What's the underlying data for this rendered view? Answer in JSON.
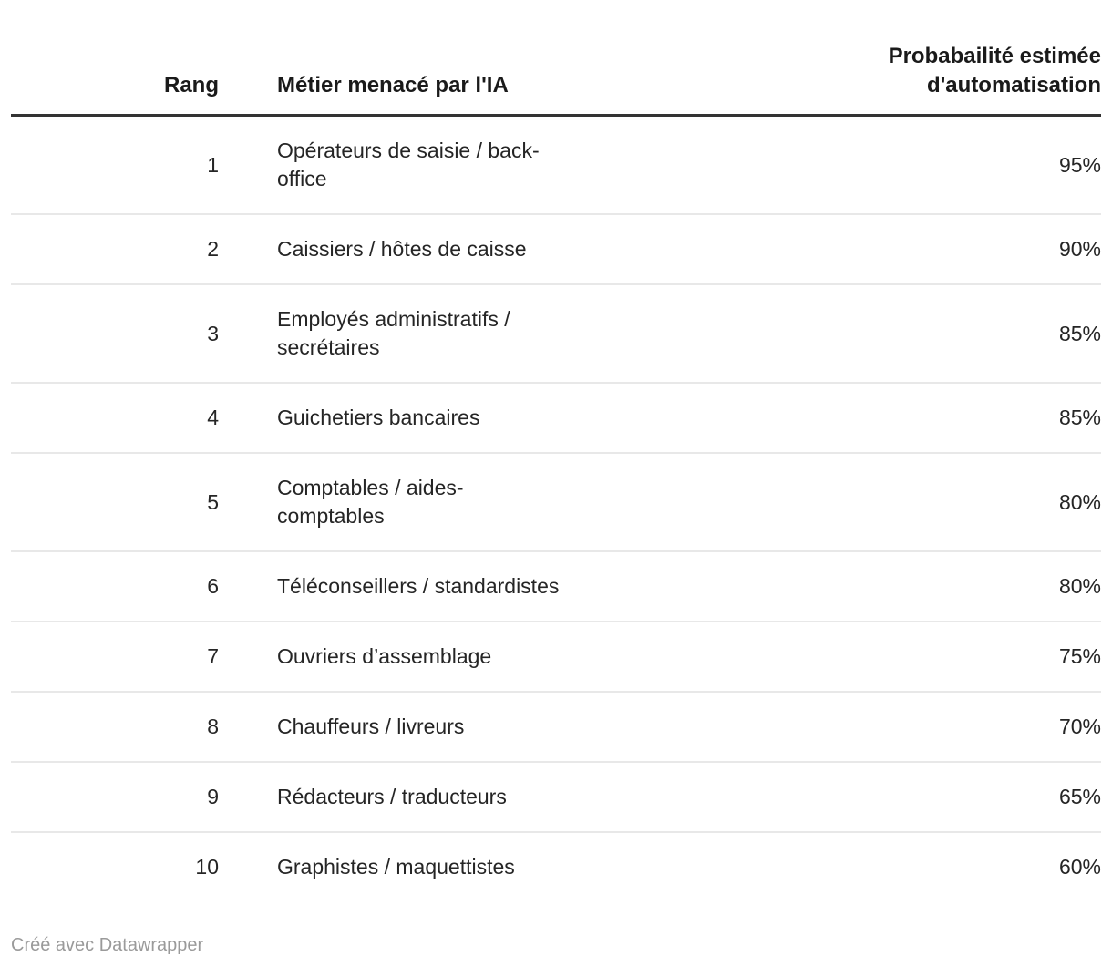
{
  "chart_data": {
    "type": "table",
    "title": "",
    "columns": [
      "Rang",
      "Métier menacé par l'IA",
      "Probabailité estimée d'automatisation"
    ],
    "ranks": [
      1,
      2,
      3,
      4,
      5,
      6,
      7,
      8,
      9,
      10
    ],
    "jobs": [
      "Opérateurs de saisie / back-office",
      "Caissiers / hôtes de caisse",
      "Employés administratifs / secrétaires",
      "Guichetiers bancaires",
      "Comptables / aides-comptables",
      "Téléconseillers / standardistes",
      "Ouvriers d’assemblage",
      "Chauffeurs / livreurs",
      "Rédacteurs / traducteurs",
      "Graphistes / maquettistes"
    ],
    "values_percent": [
      95,
      90,
      85,
      85,
      80,
      80,
      75,
      70,
      65,
      60
    ]
  },
  "table": {
    "header": {
      "rank": "Rang",
      "job": "Métier menacé par l'IA",
      "probability": "Probabailité estimée\nd'automatisation"
    },
    "rows": [
      {
        "rank": "1",
        "job": "Opérateurs de saisie / back-\noffice",
        "probability": "95%"
      },
      {
        "rank": "2",
        "job": "Caissiers / hôtes de caisse",
        "probability": "90%"
      },
      {
        "rank": "3",
        "job": "Employés administratifs /\nsecrétaires",
        "probability": "85%"
      },
      {
        "rank": "4",
        "job": "Guichetiers bancaires",
        "probability": "85%"
      },
      {
        "rank": "5",
        "job": "Comptables / aides-\ncomptables",
        "probability": "80%"
      },
      {
        "rank": "6",
        "job": "Téléconseillers / standardistes",
        "probability": "80%"
      },
      {
        "rank": "7",
        "job": "Ouvriers d’assemblage",
        "probability": "75%"
      },
      {
        "rank": "8",
        "job": "Chauffeurs / livreurs",
        "probability": "70%"
      },
      {
        "rank": "9",
        "job": "Rédacteurs / traducteurs",
        "probability": "65%"
      },
      {
        "rank": "10",
        "job": "Graphistes / maquettistes",
        "probability": "60%"
      }
    ]
  },
  "footer": {
    "credit": "Créé avec Datawrapper"
  },
  "colors": {
    "background": "#ffffff",
    "header_text": "#1a1a1a",
    "body_text": "#252525",
    "header_rule": "#333333",
    "row_separator": "#e8e8e8",
    "credit_text": "#9a9a9a"
  }
}
